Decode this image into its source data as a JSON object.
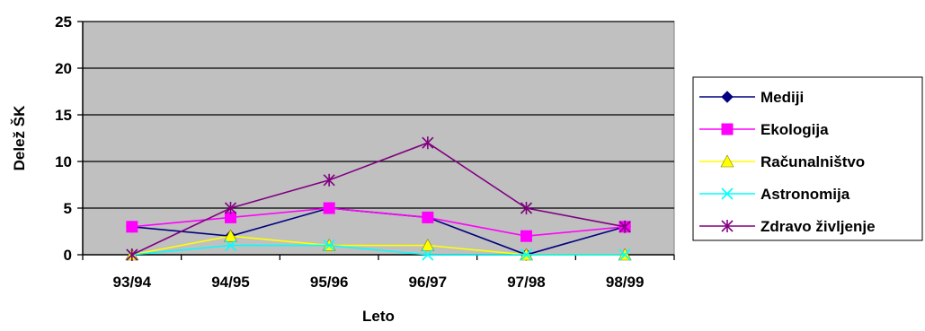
{
  "chart_data": {
    "type": "line",
    "title": "",
    "xlabel": "Leto",
    "ylabel": "Delež ŠK",
    "categories": [
      "93/94",
      "94/95",
      "95/96",
      "96/97",
      "97/98",
      "98/99"
    ],
    "yticks": [
      "0",
      "5",
      "10",
      "15",
      "20",
      "25"
    ],
    "ylim": [
      0,
      25
    ],
    "grid": true,
    "plot_background": "#C0C0C0",
    "legend_position": "right",
    "series": [
      {
        "name": "Mediji",
        "values": [
          3,
          2,
          5,
          4,
          0,
          3
        ],
        "color": "#000080",
        "marker": "diamond"
      },
      {
        "name": "Ekologija",
        "values": [
          3,
          4,
          5,
          4,
          2,
          3
        ],
        "color": "#FF00FF",
        "marker": "square"
      },
      {
        "name": "Računalništvo",
        "values": [
          0,
          2,
          1,
          1,
          0,
          0
        ],
        "color": "#FFFF00",
        "marker": "triangle"
      },
      {
        "name": "Astronomija",
        "values": [
          0,
          1,
          1,
          0,
          0,
          0
        ],
        "color": "#00FFFF",
        "marker": "x"
      },
      {
        "name": "Zdravo življenje",
        "values": [
          0,
          5,
          8,
          12,
          5,
          3
        ],
        "color": "#800080",
        "marker": "star"
      }
    ]
  }
}
